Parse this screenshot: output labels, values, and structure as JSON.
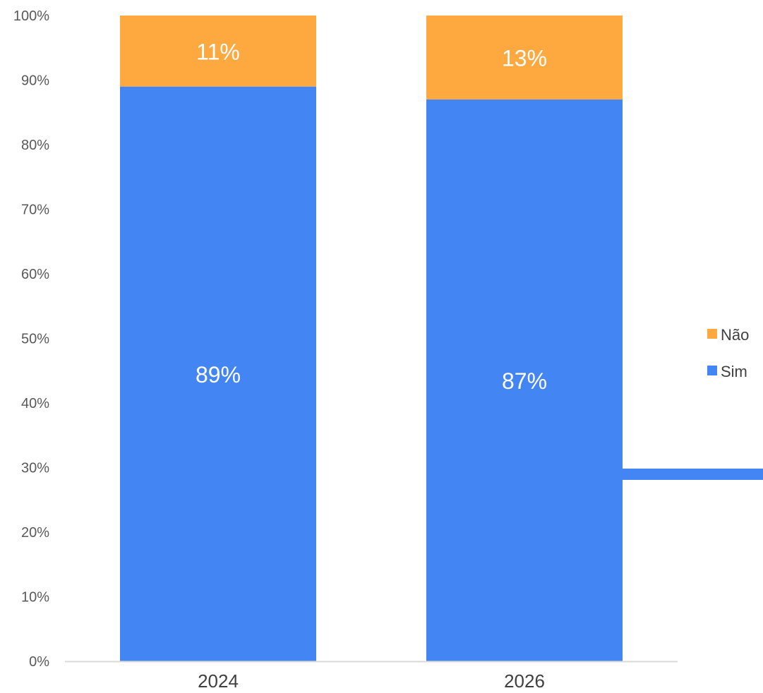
{
  "chart_data": {
    "type": "bar",
    "stacked": true,
    "categories": [
      "2024",
      "2026"
    ],
    "series": [
      {
        "name": "Sim",
        "values": [
          89,
          87
        ],
        "labels": [
          "89%",
          "87%"
        ],
        "color": "#4485F4"
      },
      {
        "name": "Não",
        "values": [
          11,
          13
        ],
        "labels": [
          "11%",
          "13%"
        ],
        "color": "#FDA940"
      }
    ],
    "y_ticks": [
      "0%",
      "10%",
      "20%",
      "30%",
      "40%",
      "50%",
      "60%",
      "70%",
      "80%",
      "90%",
      "100%"
    ],
    "ylim": [
      0,
      100
    ],
    "grid": false,
    "legend_position": "right",
    "legend_order": [
      "Não",
      "Sim"
    ],
    "title": "",
    "xlabel": "",
    "ylabel": ""
  },
  "colors": {
    "axis": "#D9D9D9",
    "accent_connector": "#4485F4"
  }
}
